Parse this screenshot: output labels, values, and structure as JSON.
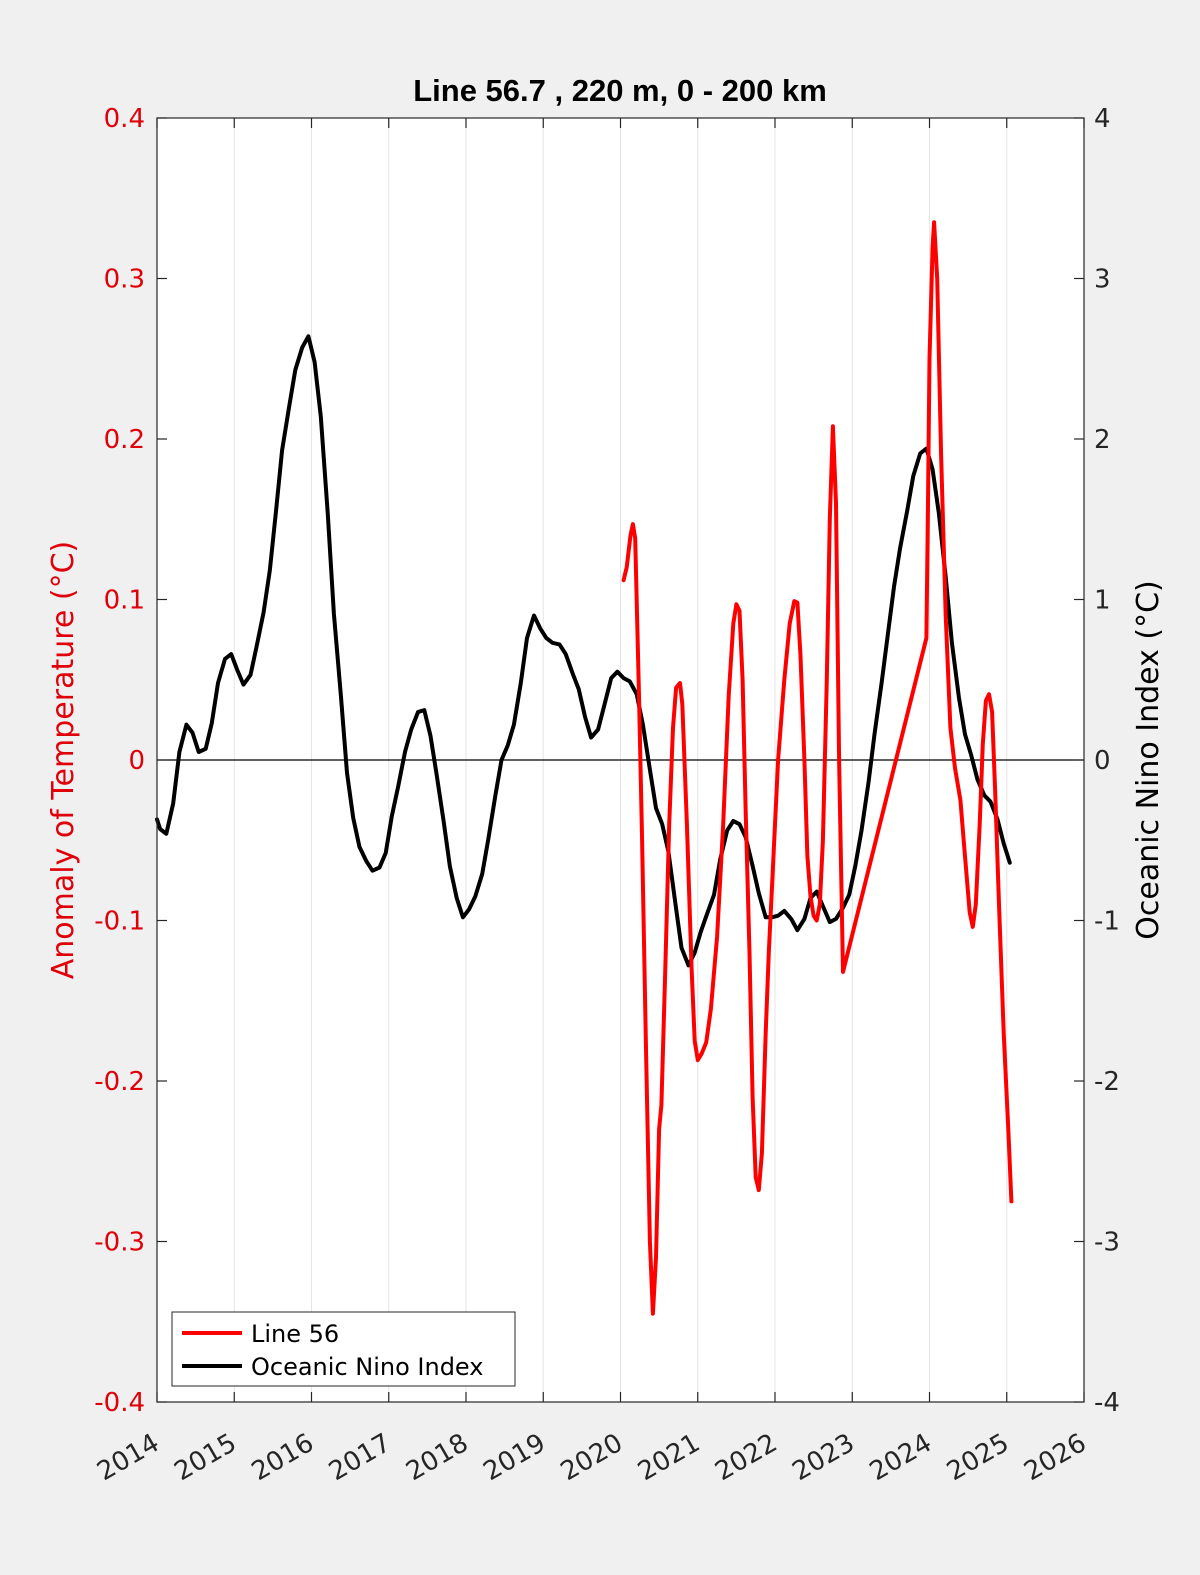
{
  "chart_data": {
    "type": "line",
    "title": "Line 56.7 , 220 m, 0 - 200 km",
    "ylabel_left": "Anomaly of Temperature (°C)",
    "ylabel_right": "Oceanic Nino Index (°C)",
    "xlabel": "",
    "xlim": [
      2014,
      2026
    ],
    "ylim_left": [
      -0.4,
      0.4
    ],
    "ylim_right": [
      -4,
      4
    ],
    "x_ticks": [
      "2014",
      "2015",
      "2016",
      "2017",
      "2018",
      "2019",
      "2020",
      "2021",
      "2022",
      "2023",
      "2024",
      "2025",
      "2026"
    ],
    "y_ticks_left": [
      "-0.4",
      "-0.3",
      "-0.2",
      "-0.1",
      "0",
      "0.1",
      "0.2",
      "0.3",
      "0.4"
    ],
    "y_ticks_right": [
      "-4",
      "-3",
      "-2",
      "-1",
      "0",
      "1",
      "2",
      "3",
      "4"
    ],
    "grid": "vertical",
    "zero_line": true,
    "legend_position": "bottom-left",
    "colors": {
      "line56": "#ff0000",
      "oni": "#000000",
      "left_axis": "#e0000a"
    },
    "series": [
      {
        "name": "Line 56",
        "axis": "left",
        "points": [
          [
            2020.04,
            0.112
          ],
          [
            2020.08,
            0.12
          ],
          [
            2020.13,
            0.14
          ],
          [
            2020.16,
            0.147
          ],
          [
            2020.19,
            0.138
          ],
          [
            2020.24,
            0.04
          ],
          [
            2020.28,
            -0.05
          ],
          [
            2020.33,
            -0.18
          ],
          [
            2020.38,
            -0.3
          ],
          [
            2020.42,
            -0.345
          ],
          [
            2020.46,
            -0.31
          ],
          [
            2020.5,
            -0.23
          ],
          [
            2020.53,
            -0.215
          ],
          [
            2020.58,
            -0.13
          ],
          [
            2020.63,
            -0.04
          ],
          [
            2020.68,
            0.02
          ],
          [
            2020.72,
            0.045
          ],
          [
            2020.77,
            0.048
          ],
          [
            2020.8,
            0.035
          ],
          [
            2020.86,
            -0.04
          ],
          [
            2020.92,
            -0.13
          ],
          [
            2020.96,
            -0.175
          ],
          [
            2021.0,
            -0.187
          ],
          [
            2021.05,
            -0.183
          ],
          [
            2021.11,
            -0.176
          ],
          [
            2021.17,
            -0.155
          ],
          [
            2021.25,
            -0.11
          ],
          [
            2021.33,
            -0.04
          ],
          [
            2021.4,
            0.04
          ],
          [
            2021.46,
            0.085
          ],
          [
            2021.5,
            0.097
          ],
          [
            2021.54,
            0.093
          ],
          [
            2021.58,
            0.05
          ],
          [
            2021.62,
            -0.03
          ],
          [
            2021.67,
            -0.12
          ],
          [
            2021.71,
            -0.21
          ],
          [
            2021.75,
            -0.26
          ],
          [
            2021.79,
            -0.268
          ],
          [
            2021.83,
            -0.245
          ],
          [
            2021.88,
            -0.17
          ],
          [
            2021.92,
            -0.12
          ],
          [
            2021.97,
            -0.07
          ],
          [
            2022.04,
            0.0
          ],
          [
            2022.12,
            0.05
          ],
          [
            2022.19,
            0.085
          ],
          [
            2022.25,
            0.099
          ],
          [
            2022.29,
            0.098
          ],
          [
            2022.33,
            0.065
          ],
          [
            2022.38,
            0.0
          ],
          [
            2022.42,
            -0.06
          ],
          [
            2022.46,
            -0.085
          ],
          [
            2022.5,
            -0.097
          ],
          [
            2022.54,
            -0.1
          ],
          [
            2022.58,
            -0.09
          ],
          [
            2022.62,
            -0.05
          ],
          [
            2022.67,
            0.05
          ],
          [
            2022.71,
            0.15
          ],
          [
            2022.75,
            0.208
          ],
          [
            2022.79,
            0.16
          ],
          [
            2022.83,
            0.0
          ],
          [
            2022.88,
            -0.132
          ],
          [
            2023.96,
            0.076
          ],
          [
            2023.98,
            0.16
          ],
          [
            2024.0,
            0.25
          ],
          [
            2024.04,
            0.32
          ],
          [
            2024.06,
            0.335
          ],
          [
            2024.1,
            0.3
          ],
          [
            2024.15,
            0.19
          ],
          [
            2024.21,
            0.09
          ],
          [
            2024.27,
            0.02
          ],
          [
            2024.33,
            -0.005
          ],
          [
            2024.4,
            -0.025
          ],
          [
            2024.46,
            -0.06
          ],
          [
            2024.52,
            -0.095
          ],
          [
            2024.56,
            -0.104
          ],
          [
            2024.6,
            -0.09
          ],
          [
            2024.65,
            -0.04
          ],
          [
            2024.69,
            0.01
          ],
          [
            2024.73,
            0.037
          ],
          [
            2024.77,
            0.041
          ],
          [
            2024.81,
            0.03
          ],
          [
            2024.85,
            -0.02
          ],
          [
            2024.9,
            -0.09
          ],
          [
            2024.96,
            -0.17
          ],
          [
            2025.02,
            -0.23
          ],
          [
            2025.06,
            -0.275
          ]
        ]
      },
      {
        "name": "Oceanic Nino Index",
        "axis": "right",
        "points": [
          [
            2014.0,
            -0.37
          ],
          [
            2014.04,
            -0.43
          ],
          [
            2014.12,
            -0.46
          ],
          [
            2014.21,
            -0.27
          ],
          [
            2014.29,
            0.05
          ],
          [
            2014.38,
            0.22
          ],
          [
            2014.46,
            0.17
          ],
          [
            2014.54,
            0.05
          ],
          [
            2014.63,
            0.07
          ],
          [
            2014.71,
            0.23
          ],
          [
            2014.79,
            0.48
          ],
          [
            2014.88,
            0.63
          ],
          [
            2014.96,
            0.66
          ],
          [
            2015.04,
            0.56
          ],
          [
            2015.12,
            0.47
          ],
          [
            2015.21,
            0.53
          ],
          [
            2015.29,
            0.71
          ],
          [
            2015.38,
            0.92
          ],
          [
            2015.46,
            1.18
          ],
          [
            2015.54,
            1.55
          ],
          [
            2015.62,
            1.93
          ],
          [
            2015.71,
            2.2
          ],
          [
            2015.79,
            2.43
          ],
          [
            2015.88,
            2.57
          ],
          [
            2015.96,
            2.64
          ],
          [
            2016.04,
            2.48
          ],
          [
            2016.12,
            2.14
          ],
          [
            2016.21,
            1.54
          ],
          [
            2016.29,
            0.91
          ],
          [
            2016.38,
            0.4
          ],
          [
            2016.46,
            -0.08
          ],
          [
            2016.54,
            -0.36
          ],
          [
            2016.62,
            -0.54
          ],
          [
            2016.71,
            -0.63
          ],
          [
            2016.79,
            -0.69
          ],
          [
            2016.88,
            -0.67
          ],
          [
            2016.96,
            -0.58
          ],
          [
            2017.04,
            -0.35
          ],
          [
            2017.12,
            -0.17
          ],
          [
            2017.21,
            0.05
          ],
          [
            2017.29,
            0.19
          ],
          [
            2017.38,
            0.3
          ],
          [
            2017.46,
            0.31
          ],
          [
            2017.54,
            0.15
          ],
          [
            2017.62,
            -0.09
          ],
          [
            2017.71,
            -0.38
          ],
          [
            2017.79,
            -0.66
          ],
          [
            2017.88,
            -0.86
          ],
          [
            2017.96,
            -0.98
          ],
          [
            2018.04,
            -0.93
          ],
          [
            2018.12,
            -0.85
          ],
          [
            2018.21,
            -0.71
          ],
          [
            2018.29,
            -0.49
          ],
          [
            2018.38,
            -0.22
          ],
          [
            2018.46,
            0.0
          ],
          [
            2018.54,
            0.09
          ],
          [
            2018.62,
            0.22
          ],
          [
            2018.71,
            0.48
          ],
          [
            2018.79,
            0.76
          ],
          [
            2018.88,
            0.9
          ],
          [
            2018.96,
            0.82
          ],
          [
            2019.04,
            0.76
          ],
          [
            2019.12,
            0.73
          ],
          [
            2019.21,
            0.72
          ],
          [
            2019.29,
            0.66
          ],
          [
            2019.38,
            0.54
          ],
          [
            2019.46,
            0.44
          ],
          [
            2019.54,
            0.27
          ],
          [
            2019.62,
            0.14
          ],
          [
            2019.71,
            0.19
          ],
          [
            2019.79,
            0.34
          ],
          [
            2019.88,
            0.51
          ],
          [
            2019.96,
            0.55
          ],
          [
            2020.04,
            0.51
          ],
          [
            2020.12,
            0.49
          ],
          [
            2020.21,
            0.41
          ],
          [
            2020.29,
            0.22
          ],
          [
            2020.38,
            -0.06
          ],
          [
            2020.46,
            -0.3
          ],
          [
            2020.54,
            -0.4
          ],
          [
            2020.62,
            -0.57
          ],
          [
            2020.71,
            -0.89
          ],
          [
            2020.79,
            -1.17
          ],
          [
            2020.88,
            -1.28
          ],
          [
            2020.96,
            -1.2
          ],
          [
            2021.04,
            -1.07
          ],
          [
            2021.12,
            -0.96
          ],
          [
            2021.21,
            -0.84
          ],
          [
            2021.29,
            -0.62
          ],
          [
            2021.38,
            -0.44
          ],
          [
            2021.46,
            -0.38
          ],
          [
            2021.54,
            -0.4
          ],
          [
            2021.62,
            -0.48
          ],
          [
            2021.71,
            -0.66
          ],
          [
            2021.79,
            -0.83
          ],
          [
            2021.88,
            -0.98
          ],
          [
            2021.96,
            -0.98
          ],
          [
            2022.04,
            -0.97
          ],
          [
            2022.12,
            -0.94
          ],
          [
            2022.21,
            -0.99
          ],
          [
            2022.29,
            -1.06
          ],
          [
            2022.38,
            -0.99
          ],
          [
            2022.46,
            -0.86
          ],
          [
            2022.54,
            -0.82
          ],
          [
            2022.62,
            -0.91
          ],
          [
            2022.71,
            -1.01
          ],
          [
            2022.79,
            -0.99
          ],
          [
            2022.88,
            -0.92
          ],
          [
            2022.96,
            -0.84
          ],
          [
            2023.04,
            -0.66
          ],
          [
            2023.12,
            -0.44
          ],
          [
            2023.21,
            -0.14
          ],
          [
            2023.29,
            0.17
          ],
          [
            2023.38,
            0.48
          ],
          [
            2023.46,
            0.78
          ],
          [
            2023.54,
            1.08
          ],
          [
            2023.62,
            1.32
          ],
          [
            2023.71,
            1.55
          ],
          [
            2023.79,
            1.77
          ],
          [
            2023.88,
            1.91
          ],
          [
            2023.96,
            1.94
          ],
          [
            2024.04,
            1.81
          ],
          [
            2024.12,
            1.54
          ],
          [
            2024.21,
            1.14
          ],
          [
            2024.29,
            0.73
          ],
          [
            2024.38,
            0.39
          ],
          [
            2024.46,
            0.16
          ],
          [
            2024.54,
            0.03
          ],
          [
            2024.62,
            -0.12
          ],
          [
            2024.71,
            -0.22
          ],
          [
            2024.79,
            -0.26
          ],
          [
            2024.88,
            -0.37
          ],
          [
            2024.96,
            -0.52
          ],
          [
            2025.04,
            -0.64
          ]
        ]
      }
    ]
  }
}
